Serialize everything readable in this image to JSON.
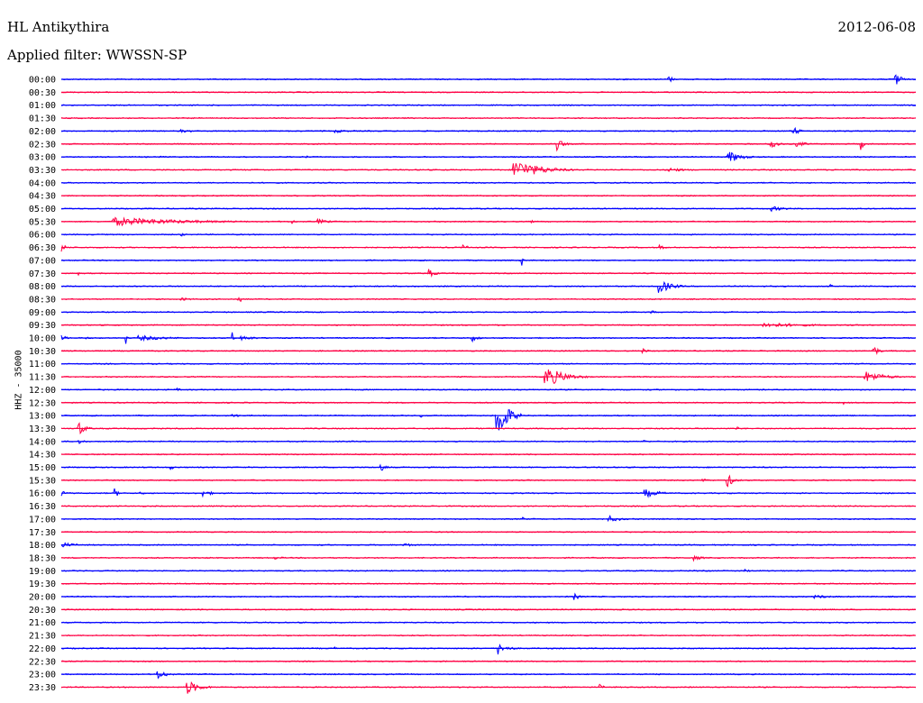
{
  "header": {
    "station": "HL Antikythira",
    "date": "2012-06-08",
    "filter_label": "Applied filter: WWSSN-SP"
  },
  "chart_data": {
    "type": "line",
    "title": "HL Antikythira",
    "ylabel": "HHZ - 35000",
    "traces": [
      {
        "label": "00:00",
        "color": "#0000ff",
        "events": [
          {
            "x": 0.71,
            "amp": 6,
            "dur": 0.012
          },
          {
            "x": 0.975,
            "amp": 22,
            "dur": 0.012
          }
        ]
      },
      {
        "label": "00:30",
        "color": "#ff0044",
        "events": []
      },
      {
        "label": "01:00",
        "color": "#0000ff",
        "events": []
      },
      {
        "label": "01:30",
        "color": "#ff0044",
        "events": []
      },
      {
        "label": "02:00",
        "color": "#0000ff",
        "events": [
          {
            "x": 0.14,
            "amp": 2,
            "dur": 0.04
          },
          {
            "x": 0.32,
            "amp": 2,
            "dur": 0.05
          },
          {
            "x": 0.855,
            "amp": 7,
            "dur": 0.02
          }
        ]
      },
      {
        "label": "02:30",
        "color": "#ff0044",
        "events": [
          {
            "x": 0.58,
            "amp": 7,
            "dur": 0.02
          },
          {
            "x": 0.83,
            "amp": 8,
            "dur": 0.02
          },
          {
            "x": 0.86,
            "amp": 3,
            "dur": 0.04
          },
          {
            "x": 0.935,
            "amp": 8,
            "dur": 0.01
          }
        ]
      },
      {
        "label": "03:00",
        "color": "#0000ff",
        "events": [
          {
            "x": 0.115,
            "amp": 3,
            "dur": 0.01
          },
          {
            "x": 0.285,
            "amp": 6,
            "dur": 0.005
          },
          {
            "x": 0.78,
            "amp": 8,
            "dur": 0.04
          }
        ]
      },
      {
        "label": "03:30",
        "color": "#ff0044",
        "events": [
          {
            "x": 0.528,
            "amp": 13,
            "dur": 0.08
          },
          {
            "x": 0.71,
            "amp": 3,
            "dur": 0.05
          }
        ]
      },
      {
        "label": "04:00",
        "color": "#0000ff",
        "events": []
      },
      {
        "label": "04:30",
        "color": "#ff0044",
        "events": []
      },
      {
        "label": "05:00",
        "color": "#0000ff",
        "events": [
          {
            "x": 0.83,
            "amp": 3,
            "dur": 0.05
          }
        ]
      },
      {
        "label": "05:30",
        "color": "#ff0044",
        "events": [
          {
            "x": 0.06,
            "amp": 5,
            "dur": 0.24
          },
          {
            "x": 0.27,
            "amp": 6,
            "dur": 0.005
          },
          {
            "x": 0.3,
            "amp": 3,
            "dur": 0.04
          },
          {
            "x": 0.55,
            "amp": 2,
            "dur": 0.01
          }
        ]
      },
      {
        "label": "06:00",
        "color": "#0000ff",
        "events": [
          {
            "x": 0.14,
            "amp": 3,
            "dur": 0.01
          }
        ]
      },
      {
        "label": "06:30",
        "color": "#ff0044",
        "events": [
          {
            "x": 0.0,
            "amp": 5,
            "dur": 0.015
          },
          {
            "x": 0.47,
            "amp": 4,
            "dur": 0.015
          },
          {
            "x": 0.7,
            "amp": 3,
            "dur": 0.02
          }
        ]
      },
      {
        "label": "07:00",
        "color": "#0000ff",
        "events": [
          {
            "x": 0.538,
            "amp": 10,
            "dur": 0.005
          }
        ]
      },
      {
        "label": "07:30",
        "color": "#ff0044",
        "events": [
          {
            "x": 0.02,
            "amp": 2,
            "dur": 0.005
          },
          {
            "x": 0.43,
            "amp": 5,
            "dur": 0.02
          }
        ]
      },
      {
        "label": "08:00",
        "color": "#0000ff",
        "events": [
          {
            "x": 0.698,
            "amp": 9,
            "dur": 0.04
          },
          {
            "x": 0.9,
            "amp": 2,
            "dur": 0.01
          }
        ]
      },
      {
        "label": "08:30",
        "color": "#ff0044",
        "events": [
          {
            "x": 0.14,
            "amp": 2,
            "dur": 0.04
          },
          {
            "x": 0.206,
            "amp": 6,
            "dur": 0.015
          }
        ]
      },
      {
        "label": "09:00",
        "color": "#0000ff",
        "events": [
          {
            "x": 0.69,
            "amp": 2,
            "dur": 0.02
          }
        ]
      },
      {
        "label": "09:30",
        "color": "#ff0044",
        "events": [
          {
            "x": 0.82,
            "amp": 3,
            "dur": 0.16
          }
        ]
      },
      {
        "label": "10:00",
        "color": "#0000ff",
        "events": [
          {
            "x": 0.0,
            "amp": 3,
            "dur": 0.02
          },
          {
            "x": 0.028,
            "amp": 13,
            "dur": 0.004
          },
          {
            "x": 0.075,
            "amp": 10,
            "dur": 0.004
          },
          {
            "x": 0.09,
            "amp": 3,
            "dur": 0.11
          },
          {
            "x": 0.2,
            "amp": 7,
            "dur": 0.004
          },
          {
            "x": 0.21,
            "amp": 3,
            "dur": 0.05
          },
          {
            "x": 0.48,
            "amp": 5,
            "dur": 0.02
          }
        ]
      },
      {
        "label": "10:30",
        "color": "#ff0044",
        "events": [
          {
            "x": 0.345,
            "amp": 2,
            "dur": 0.005
          },
          {
            "x": 0.68,
            "amp": 3,
            "dur": 0.02
          },
          {
            "x": 0.95,
            "amp": 8,
            "dur": 0.015
          }
        ]
      },
      {
        "label": "11:00",
        "color": "#0000ff",
        "events": []
      },
      {
        "label": "11:30",
        "color": "#ff0044",
        "events": [
          {
            "x": 0.565,
            "amp": 13,
            "dur": 0.06
          },
          {
            "x": 0.94,
            "amp": 7,
            "dur": 0.06
          }
        ]
      },
      {
        "label": "12:00",
        "color": "#0000ff",
        "events": [
          {
            "x": 0.135,
            "amp": 2,
            "dur": 0.015
          }
        ]
      },
      {
        "label": "12:30",
        "color": "#ff0044",
        "events": [
          {
            "x": 0.915,
            "amp": 3,
            "dur": 0.005
          }
        ]
      },
      {
        "label": "13:00",
        "color": "#0000ff",
        "events": [
          {
            "x": 0.508,
            "amp": 40,
            "dur": 0.03
          },
          {
            "x": 0.2,
            "amp": 2,
            "dur": 0.04
          },
          {
            "x": 0.42,
            "amp": 2,
            "dur": 0.03
          }
        ]
      },
      {
        "label": "13:30",
        "color": "#ff0044",
        "events": [
          {
            "x": 0.02,
            "amp": 9,
            "dur": 0.02
          },
          {
            "x": 0.79,
            "amp": 2,
            "dur": 0.02
          }
        ]
      },
      {
        "label": "14:00",
        "color": "#0000ff",
        "events": [
          {
            "x": 0.02,
            "amp": 3,
            "dur": 0.02
          },
          {
            "x": 0.68,
            "amp": 2,
            "dur": 0.02
          }
        ]
      },
      {
        "label": "14:30",
        "color": "#ff0044",
        "events": []
      },
      {
        "label": "15:00",
        "color": "#0000ff",
        "events": [
          {
            "x": 0.127,
            "amp": 3,
            "dur": 0.015
          },
          {
            "x": 0.373,
            "amp": 5,
            "dur": 0.02
          }
        ]
      },
      {
        "label": "15:30",
        "color": "#ff0044",
        "events": [
          {
            "x": 0.75,
            "amp": 2,
            "dur": 0.03
          },
          {
            "x": 0.778,
            "amp": 10,
            "dur": 0.02
          }
        ]
      },
      {
        "label": "16:00",
        "color": "#0000ff",
        "events": [
          {
            "x": 0.0,
            "amp": 3,
            "dur": 0.02
          },
          {
            "x": 0.062,
            "amp": 6,
            "dur": 0.015
          },
          {
            "x": 0.092,
            "amp": 4,
            "dur": 0.01
          },
          {
            "x": 0.165,
            "amp": 4,
            "dur": 0.03
          },
          {
            "x": 0.682,
            "amp": 5,
            "dur": 0.05
          }
        ]
      },
      {
        "label": "16:30",
        "color": "#ff0044",
        "events": []
      },
      {
        "label": "17:00",
        "color": "#0000ff",
        "events": [
          {
            "x": 0.54,
            "amp": 3,
            "dur": 0.005
          },
          {
            "x": 0.64,
            "amp": 4,
            "dur": 0.04
          }
        ]
      },
      {
        "label": "17:30",
        "color": "#ff0044",
        "events": [
          {
            "x": 0.9,
            "amp": 2,
            "dur": 0.005
          }
        ]
      },
      {
        "label": "18:00",
        "color": "#0000ff",
        "events": [
          {
            "x": 0.0,
            "amp": 3,
            "dur": 0.05
          },
          {
            "x": 0.4,
            "amp": 2,
            "dur": 0.05
          }
        ]
      },
      {
        "label": "18:30",
        "color": "#ff0044",
        "events": [
          {
            "x": 0.25,
            "amp": 2,
            "dur": 0.03
          },
          {
            "x": 0.74,
            "amp": 3,
            "dur": 0.03
          }
        ]
      },
      {
        "label": "19:00",
        "color": "#0000ff",
        "events": [
          {
            "x": 0.8,
            "amp": 2,
            "dur": 0.02
          }
        ]
      },
      {
        "label": "19:30",
        "color": "#ff0044",
        "events": []
      },
      {
        "label": "20:00",
        "color": "#0000ff",
        "events": [
          {
            "x": 0.6,
            "amp": 4,
            "dur": 0.02
          },
          {
            "x": 0.88,
            "amp": 2,
            "dur": 0.08
          }
        ]
      },
      {
        "label": "20:30",
        "color": "#ff0044",
        "events": []
      },
      {
        "label": "21:00",
        "color": "#0000ff",
        "events": []
      },
      {
        "label": "21:30",
        "color": "#ff0044",
        "events": []
      },
      {
        "label": "22:00",
        "color": "#0000ff",
        "events": [
          {
            "x": 0.32,
            "amp": 2,
            "dur": 0.005
          },
          {
            "x": 0.51,
            "amp": 8,
            "dur": 0.03
          }
        ]
      },
      {
        "label": "22:30",
        "color": "#ff0044",
        "events": []
      },
      {
        "label": "23:00",
        "color": "#0000ff",
        "events": [
          {
            "x": 0.112,
            "amp": 6,
            "dur": 0.03
          },
          {
            "x": 0.2,
            "amp": 2,
            "dur": 0.01
          }
        ]
      },
      {
        "label": "23:30",
        "color": "#ff0044",
        "events": [
          {
            "x": 0.146,
            "amp": 9,
            "dur": 0.04
          },
          {
            "x": 0.63,
            "amp": 5,
            "dur": 0.01
          }
        ]
      }
    ]
  }
}
